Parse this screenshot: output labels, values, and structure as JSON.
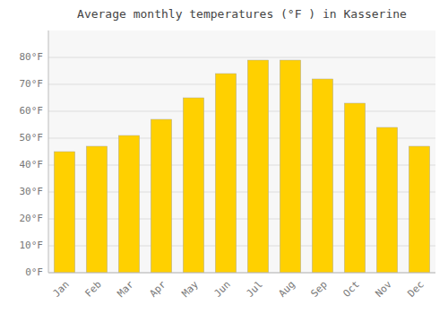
{
  "chart_data": {
    "type": "bar",
    "title": "Average monthly temperatures (°F ) in Kasserine",
    "categories": [
      "Jan",
      "Feb",
      "Mar",
      "Apr",
      "May",
      "Jun",
      "Jul",
      "Aug",
      "Sep",
      "Oct",
      "Nov",
      "Dec"
    ],
    "values": [
      45,
      47,
      51,
      57,
      65,
      74,
      79,
      79,
      72,
      63,
      54,
      47
    ],
    "color": "#FFD000",
    "ylim": [
      0,
      90
    ],
    "yticks": [
      {
        "value": 0,
        "label": "0°F"
      },
      {
        "value": 10,
        "label": "10°F"
      },
      {
        "value": 20,
        "label": "20°F"
      },
      {
        "value": 30,
        "label": "30°F"
      },
      {
        "value": 40,
        "label": "40°F"
      },
      {
        "value": 50,
        "label": "50°F"
      },
      {
        "value": 60,
        "label": "60°F"
      },
      {
        "value": 70,
        "label": "70°F"
      },
      {
        "value": 80,
        "label": "80°F"
      }
    ],
    "grid": true
  }
}
